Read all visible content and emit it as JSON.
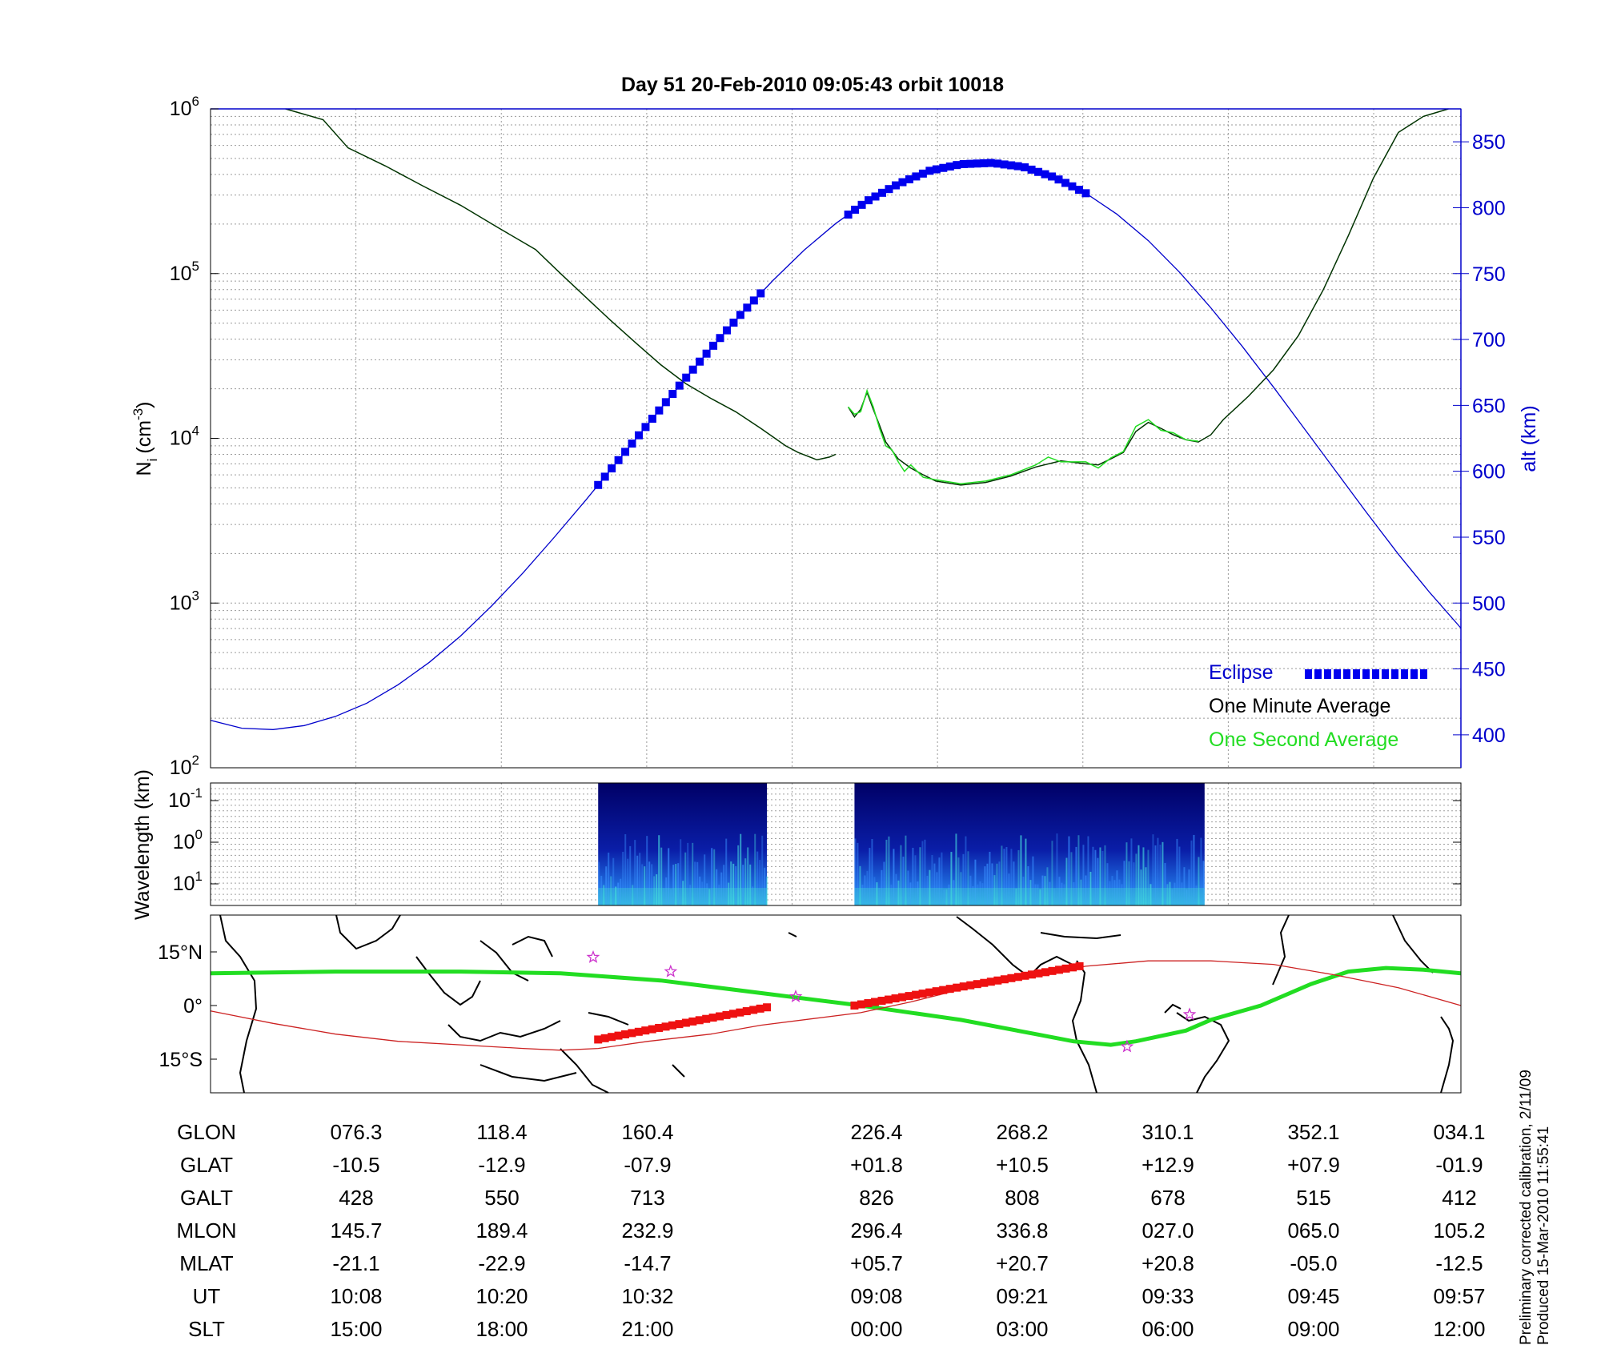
{
  "title": "Day 51  20-Feb-2010 09:05:43   orbit 10018",
  "colors": {
    "blue": "#0000cc",
    "eclipse": "#0000ee",
    "minute": "#003300",
    "second": "#22dd22",
    "red": "#ee1111",
    "track": "#cc2222",
    "star": "#cc33cc"
  },
  "chart_data": [
    {
      "type": "line",
      "panel": "density",
      "ylabel": "N",
      "ylabel_sub": "i",
      "ylabel_units": "(cm",
      "ylabel_units_sup": "-3",
      "ylabel_units_end": ")",
      "yscale": "log",
      "ylim": [
        100,
        1000000
      ],
      "yticks": [
        {
          "base": "10",
          "exp": "2"
        },
        {
          "base": "10",
          "exp": "3"
        },
        {
          "base": "10",
          "exp": "4"
        },
        {
          "base": "10",
          "exp": "5"
        },
        {
          "base": "10",
          "exp": "6"
        }
      ],
      "y2label": "alt (km)",
      "y2lim": [
        375,
        875
      ],
      "y2ticks": [
        "400",
        "450",
        "500",
        "550",
        "600",
        "650",
        "700",
        "750",
        "800",
        "850"
      ],
      "xlim": [
        0,
        1
      ],
      "grid": true,
      "legend": {
        "placement": "bottom-right",
        "eclipse": "Eclipse",
        "minute": "One Minute Average",
        "second": "One Second Average"
      },
      "series": [
        {
          "name": "One Minute Average",
          "segments": [
            [
              [
                0.06,
                1000000
              ],
              [
                0.09,
                860000
              ],
              [
                0.11,
                580000
              ],
              [
                0.14,
                450000
              ],
              [
                0.17,
                340000
              ],
              [
                0.2,
                260000
              ],
              [
                0.23,
                190000
              ],
              [
                0.26,
                140000
              ],
              [
                0.28,
                100000
              ],
              [
                0.3,
                72000
              ],
              [
                0.32,
                52000
              ],
              [
                0.34,
                38000
              ],
              [
                0.36,
                28000
              ],
              [
                0.38,
                21500
              ],
              [
                0.4,
                17500
              ],
              [
                0.42,
                14500
              ],
              [
                0.44,
                11500
              ],
              [
                0.46,
                9000
              ],
              [
                0.47,
                8200
              ],
              [
                0.485,
                7400
              ],
              [
                0.495,
                7700
              ],
              [
                0.5,
                8000
              ]
            ],
            [
              [
                0.51,
                15500
              ],
              [
                0.515,
                13500
              ],
              [
                0.52,
                15000
              ],
              [
                0.525,
                19000
              ],
              [
                0.53,
                15000
              ],
              [
                0.535,
                12000
              ],
              [
                0.54,
                9500
              ],
              [
                0.55,
                7500
              ],
              [
                0.56,
                6600
              ],
              [
                0.57,
                6000
              ],
              [
                0.58,
                5500
              ],
              [
                0.6,
                5200
              ],
              [
                0.62,
                5400
              ],
              [
                0.64,
                5900
              ],
              [
                0.66,
                6700
              ],
              [
                0.68,
                7300
              ],
              [
                0.7,
                7000
              ],
              [
                0.71,
                6900
              ],
              [
                0.72,
                7500
              ],
              [
                0.73,
                8200
              ],
              [
                0.74,
                11000
              ],
              [
                0.75,
                12500
              ],
              [
                0.76,
                11500
              ],
              [
                0.77,
                10500
              ],
              [
                0.78,
                9800
              ],
              [
                0.79,
                9500
              ],
              [
                0.8,
                10500
              ],
              [
                0.81,
                13000
              ],
              [
                0.83,
                18000
              ],
              [
                0.85,
                26000
              ],
              [
                0.87,
                42000
              ],
              [
                0.89,
                80000
              ],
              [
                0.91,
                170000
              ],
              [
                0.93,
                380000
              ],
              [
                0.95,
                720000
              ],
              [
                0.97,
                900000
              ],
              [
                0.99,
                1000000
              ]
            ]
          ]
        },
        {
          "name": "One Second Average",
          "segments": [
            [
              [
                0.51,
                15500
              ],
              [
                0.515,
                14000
              ],
              [
                0.52,
                14500
              ],
              [
                0.525,
                19500
              ],
              [
                0.53,
                15500
              ],
              [
                0.535,
                11500
              ],
              [
                0.54,
                9000
              ],
              [
                0.545,
                8500
              ],
              [
                0.55,
                7200
              ],
              [
                0.555,
                6300
              ],
              [
                0.56,
                6900
              ],
              [
                0.57,
                5800
              ],
              [
                0.58,
                5600
              ],
              [
                0.6,
                5300
              ],
              [
                0.62,
                5500
              ],
              [
                0.64,
                6000
              ],
              [
                0.66,
                6900
              ],
              [
                0.67,
                7700
              ],
              [
                0.68,
                7200
              ],
              [
                0.7,
                7200
              ],
              [
                0.71,
                6600
              ],
              [
                0.72,
                7600
              ],
              [
                0.73,
                8300
              ],
              [
                0.74,
                11800
              ],
              [
                0.75,
                13000
              ],
              [
                0.76,
                11200
              ],
              [
                0.77,
                10800
              ],
              [
                0.78,
                9800
              ],
              [
                0.79,
                9600
              ]
            ]
          ]
        },
        {
          "name": "alt",
          "axis": "right",
          "values": [
            [
              0.0,
              411
            ],
            [
              0.025,
              405
            ],
            [
              0.05,
              404
            ],
            [
              0.075,
              407
            ],
            [
              0.1,
              414
            ],
            [
              0.125,
              424
            ],
            [
              0.15,
              438
            ],
            [
              0.175,
              455
            ],
            [
              0.2,
              475
            ],
            [
              0.225,
              498
            ],
            [
              0.25,
              523
            ],
            [
              0.275,
              550
            ],
            [
              0.3,
              578
            ],
            [
              0.325,
              607
            ],
            [
              0.35,
              636
            ],
            [
              0.375,
              665
            ],
            [
              0.4,
              693
            ],
            [
              0.425,
              720
            ],
            [
              0.45,
              745
            ],
            [
              0.475,
              768
            ],
            [
              0.5,
              788
            ],
            [
              0.525,
              805
            ],
            [
              0.55,
              818
            ],
            [
              0.575,
              828
            ],
            [
              0.6,
              833
            ],
            [
              0.625,
              834
            ],
            [
              0.65,
              831
            ],
            [
              0.675,
              823
            ],
            [
              0.7,
              811
            ],
            [
              0.725,
              795
            ],
            [
              0.75,
              775
            ],
            [
              0.775,
              751
            ],
            [
              0.8,
              724
            ],
            [
              0.825,
              695
            ],
            [
              0.85,
              664
            ],
            [
              0.875,
              632
            ],
            [
              0.9,
              600
            ],
            [
              0.925,
              568
            ],
            [
              0.95,
              537
            ],
            [
              0.975,
              508
            ],
            [
              1.0,
              481
            ]
          ]
        },
        {
          "name": "Eclipse",
          "axis": "right",
          "segments": [
            [
              0.31,
              0.44
            ],
            [
              0.51,
              0.7
            ]
          ]
        }
      ]
    },
    {
      "type": "heatmap",
      "panel": "spectrogram",
      "ylabel": "Wavelength (km)",
      "yticks": [
        {
          "base": "10",
          "exp": "-1"
        },
        {
          "base": "10",
          "exp": "0"
        },
        {
          "base": "10",
          "exp": "1"
        }
      ],
      "blocks": [
        [
          0.31,
          0.445
        ],
        [
          0.515,
          0.795
        ]
      ]
    },
    {
      "type": "line",
      "panel": "map",
      "yticks": [
        "15°N",
        "0°",
        "15°S"
      ],
      "ylim": [
        -15,
        15
      ],
      "series": [
        {
          "name": "dip equator",
          "values": [
            [
              0.0,
              9
            ],
            [
              0.1,
              9.5
            ],
            [
              0.2,
              9.5
            ],
            [
              0.28,
              9
            ],
            [
              0.36,
              7
            ],
            [
              0.44,
              3.5
            ],
            [
              0.52,
              0
            ],
            [
              0.6,
              -4
            ],
            [
              0.66,
              -8
            ],
            [
              0.69,
              -10
            ],
            [
              0.72,
              -11
            ],
            [
              0.74,
              -10
            ],
            [
              0.78,
              -7
            ],
            [
              0.8,
              -4
            ],
            [
              0.84,
              0
            ],
            [
              0.88,
              6
            ],
            [
              0.91,
              9.5
            ],
            [
              0.94,
              10.5
            ],
            [
              0.97,
              10
            ],
            [
              1.0,
              9
            ]
          ]
        },
        {
          "name": "orbit track",
          "values": [
            [
              0.0,
              -1.5
            ],
            [
              0.05,
              -5
            ],
            [
              0.1,
              -8
            ],
            [
              0.15,
              -10
            ],
            [
              0.2,
              -11
            ],
            [
              0.25,
              -12
            ],
            [
              0.28,
              -12.5
            ],
            [
              0.31,
              -12
            ],
            [
              0.35,
              -10
            ],
            [
              0.4,
              -8
            ],
            [
              0.44,
              -5.5
            ],
            [
              0.52,
              -2
            ],
            [
              0.56,
              1
            ],
            [
              0.6,
              4.5
            ],
            [
              0.65,
              8
            ],
            [
              0.7,
              11
            ],
            [
              0.75,
              12.5
            ],
            [
              0.8,
              12.5
            ],
            [
              0.85,
              11.5
            ],
            [
              0.9,
              8.5
            ],
            [
              0.95,
              5
            ],
            [
              1.0,
              0
            ]
          ]
        },
        {
          "name": "eclipse track",
          "segments": [
            [
              [
                0.31,
                -9.5
              ],
              [
                0.445,
                -0.5
              ]
            ],
            [
              [
                0.515,
                0
              ],
              [
                0.695,
                11
              ]
            ]
          ]
        }
      ],
      "stars": [
        [
          0.306,
          13.5
        ],
        [
          0.368,
          9.5
        ],
        [
          0.468,
          2.5
        ],
        [
          0.733,
          -11.5
        ],
        [
          0.783,
          -2.5
        ]
      ]
    }
  ],
  "table": {
    "rows": [
      {
        "label": "GLON",
        "values": [
          "076.3",
          "118.4",
          "160.4",
          "226.4",
          "268.2",
          "310.1",
          "352.1",
          "034.1"
        ]
      },
      {
        "label": "GLAT",
        "values": [
          "-10.5",
          "-12.9",
          "-07.9",
          "+01.8",
          "+10.5",
          "+12.9",
          "+07.9",
          "-01.9"
        ]
      },
      {
        "label": "GALT",
        "values": [
          "428",
          "550",
          "713",
          "826",
          "808",
          "678",
          "515",
          "412"
        ]
      },
      {
        "label": "MLON",
        "values": [
          "145.7",
          "189.4",
          "232.9",
          "296.4",
          "336.8",
          "027.0",
          "065.0",
          "105.2"
        ]
      },
      {
        "label": "MLAT",
        "values": [
          "-21.1",
          "-22.9",
          "-14.7",
          "+05.7",
          "+20.7",
          "+20.8",
          "-05.0",
          "-12.5"
        ]
      },
      {
        "label": "UT",
        "values": [
          "10:08",
          "10:20",
          "10:32",
          "09:08",
          "09:21",
          "09:33",
          "09:45",
          "09:57"
        ]
      },
      {
        "label": "SLT",
        "values": [
          "15:00",
          "18:00",
          "21:00",
          "00:00",
          "03:00",
          "06:00",
          "09:00",
          "12:00"
        ]
      }
    ]
  },
  "footer": {
    "line1": "Preliminary corrected calibration, 2/11/09",
    "line2": "Produced 15-Mar-2010 11:55:41"
  }
}
